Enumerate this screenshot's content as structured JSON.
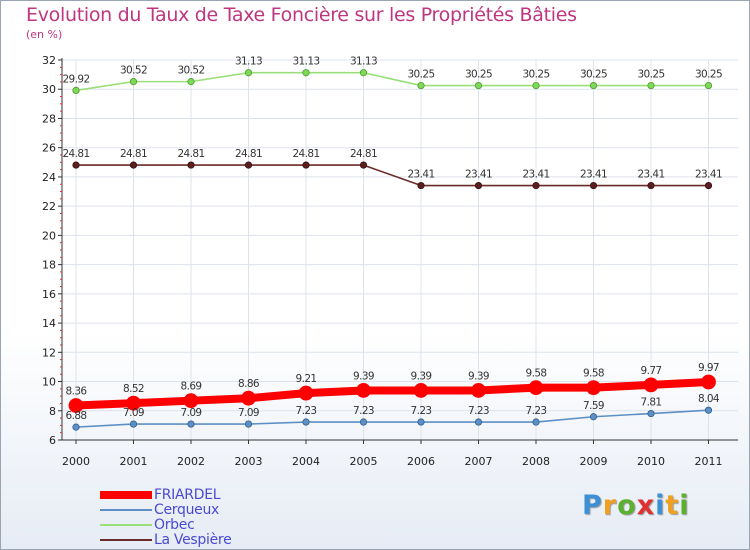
{
  "title": "Evolution du Taux de Taxe Foncière sur les Propriétés Bâties",
  "unit": "(en %)",
  "logo": "Proxiti",
  "chart_data": {
    "type": "line",
    "title": "Evolution du Taux de Taxe Foncière sur les Propriétés Bâties",
    "ylabel": "(en %)",
    "xlabel": "",
    "ylim": [
      6,
      32
    ],
    "y_ticks": [
      6,
      8,
      10,
      12,
      14,
      16,
      18,
      20,
      22,
      24,
      26,
      28,
      30,
      32
    ],
    "categories": [
      "2000",
      "2001",
      "2002",
      "2003",
      "2004",
      "2005",
      "2006",
      "2007",
      "2008",
      "2009",
      "2010",
      "2011"
    ],
    "series": [
      {
        "name": "FRIARDEL",
        "color": "#ff0000",
        "values": [
          8.36,
          8.52,
          8.69,
          8.86,
          9.21,
          9.39,
          9.39,
          9.39,
          9.58,
          9.58,
          9.77,
          9.97
        ]
      },
      {
        "name": "Cerqueux",
        "color": "#5d8fc4",
        "values": [
          6.88,
          7.09,
          7.09,
          7.09,
          7.23,
          7.23,
          7.23,
          7.23,
          7.23,
          7.59,
          7.81,
          8.04
        ]
      },
      {
        "name": "Orbec",
        "color": "#99e07a",
        "values": [
          29.92,
          30.52,
          30.52,
          31.13,
          31.13,
          31.13,
          30.25,
          30.25,
          30.25,
          30.25,
          30.25,
          30.25
        ]
      },
      {
        "name": "La Vespière",
        "color": "#6b2a2a",
        "values": [
          24.81,
          24.81,
          24.81,
          24.81,
          24.81,
          24.81,
          23.41,
          23.41,
          23.41,
          23.41,
          23.41,
          23.41
        ]
      }
    ]
  }
}
